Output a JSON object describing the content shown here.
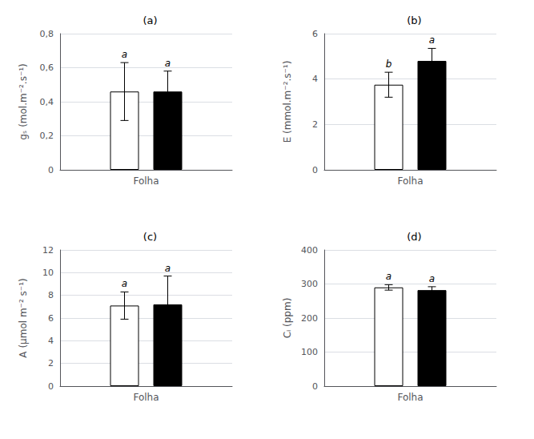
{
  "chart_data": [
    {
      "type": "bar",
      "title": "(a)",
      "ylabel": "gₛ (mol.m⁻².s⁻¹)",
      "categories": [
        "Folha"
      ],
      "series": [
        {
          "color": "white",
          "values": [
            0.46
          ],
          "errors": [
            0.17
          ],
          "annotations": [
            "a"
          ]
        },
        {
          "color": "black",
          "values": [
            0.46
          ],
          "errors": [
            0.12
          ],
          "annotations": [
            "a"
          ]
        }
      ],
      "ylim": [
        0,
        0.8
      ],
      "yticks": [
        0,
        {
          "value": 0.2,
          "label": "0,2"
        },
        {
          "value": 0.4,
          "label": "0,4"
        },
        {
          "value": 0.6,
          "label": "0,6"
        },
        {
          "value": 0.8,
          "label": "0,8"
        }
      ],
      "grid": true
    },
    {
      "type": "bar",
      "title": "(b)",
      "ylabel": "E (mmol.m⁻².s⁻¹)",
      "categories": [
        "Folha"
      ],
      "series": [
        {
          "color": "white",
          "values": [
            3.75
          ],
          "errors": [
            0.55
          ],
          "annotations": [
            "b"
          ]
        },
        {
          "color": "black",
          "values": [
            4.8
          ],
          "errors": [
            0.55
          ],
          "annotations": [
            "a"
          ]
        }
      ],
      "ylim": [
        0,
        6
      ],
      "yticks": [
        0,
        2,
        4,
        6
      ],
      "grid": true
    },
    {
      "type": "bar",
      "title": "(c)",
      "ylabel": "A (µmol m⁻² s⁻¹)",
      "categories": [
        "Folha"
      ],
      "series": [
        {
          "color": "white",
          "values": [
            7.1
          ],
          "errors": [
            1.2
          ],
          "annotations": [
            "a"
          ]
        },
        {
          "color": "black",
          "values": [
            7.2
          ],
          "errors": [
            2.5
          ],
          "annotations": [
            "a"
          ]
        }
      ],
      "ylim": [
        0,
        12
      ],
      "yticks": [
        0,
        2,
        4,
        6,
        8,
        10,
        12
      ],
      "grid": true
    },
    {
      "type": "bar",
      "title": "(d)",
      "ylabel": "Cᵢ (ppm)",
      "categories": [
        "Folha"
      ],
      "series": [
        {
          "color": "white",
          "values": [
            290
          ],
          "errors": [
            8
          ],
          "annotations": [
            "a"
          ]
        },
        {
          "color": "black",
          "values": [
            282
          ],
          "errors": [
            10
          ],
          "annotations": [
            "a"
          ]
        }
      ],
      "ylim": [
        0,
        400
      ],
      "yticks": [
        0,
        100,
        200,
        300,
        400
      ],
      "grid": true
    }
  ]
}
